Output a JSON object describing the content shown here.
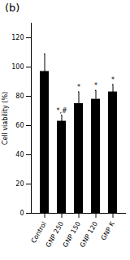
{
  "chart_data": {
    "type": "bar",
    "title": "(b)",
    "ylabel": "Cell viability (%)",
    "categories": [
      "Control",
      "GNP 250",
      "GNP 150",
      "GNP 120",
      "GNP K"
    ],
    "values": [
      97,
      63,
      75,
      78,
      83
    ],
    "errors": [
      12,
      4,
      8,
      6,
      5
    ],
    "annotations": [
      null,
      "*,#",
      "*",
      "*",
      "*"
    ],
    "ylim": [
      0,
      130
    ],
    "yticks": [
      0,
      20,
      40,
      60,
      80,
      100,
      120
    ],
    "grid": false
  }
}
